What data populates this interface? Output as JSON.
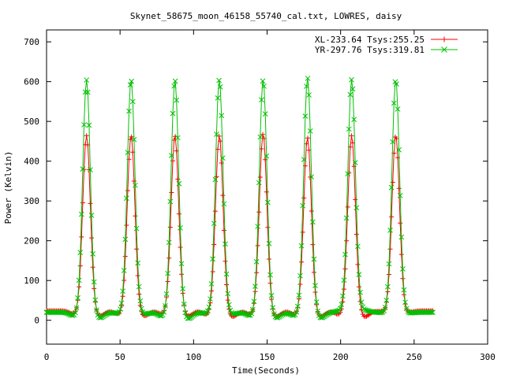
{
  "chart_data": {
    "type": "line",
    "title": "Skynet_58675_moon_46158_55740_cal.txt, LOWRES, daisy",
    "xlabel": "Time(Seconds)",
    "ylabel": "Power (Kelvin)",
    "xlim": [
      0,
      300
    ],
    "ylim": [
      -60,
      730
    ],
    "xticks": [
      0,
      50,
      100,
      150,
      200,
      250,
      300
    ],
    "yticks": [
      0,
      100,
      200,
      300,
      400,
      500,
      600,
      700
    ],
    "grid": false,
    "legend_position": "top-right",
    "series": [
      {
        "name": "XL-233.64 Tsys:255.25",
        "color": "#ff0000",
        "marker": "+",
        "x_start": 0,
        "x_end": 263,
        "baseline": 24,
        "peak_times": [
          27.2,
          57.5,
          87.3,
          117.5,
          147.3,
          177.5,
          207.5,
          237.5
        ],
        "peak_values": [
          465,
          465,
          465,
          465,
          470,
          460,
          465,
          465
        ],
        "trough_values": [
          10,
          10,
          10,
          8,
          8,
          8,
          8,
          20
        ]
      },
      {
        "name": "YR-297.76 Tsys:319.81",
        "color": "#00c000",
        "marker": "x",
        "x_start": 0,
        "x_end": 263,
        "baseline": 20,
        "peak_times": [
          27.2,
          57.5,
          87.3,
          117.5,
          147.3,
          177.5,
          207.5,
          237.5
        ],
        "peak_values": [
          605,
          605,
          605,
          605,
          605,
          610,
          605,
          605
        ],
        "trough_values": [
          5,
          15,
          3,
          15,
          5,
          5,
          25,
          18
        ]
      }
    ]
  }
}
